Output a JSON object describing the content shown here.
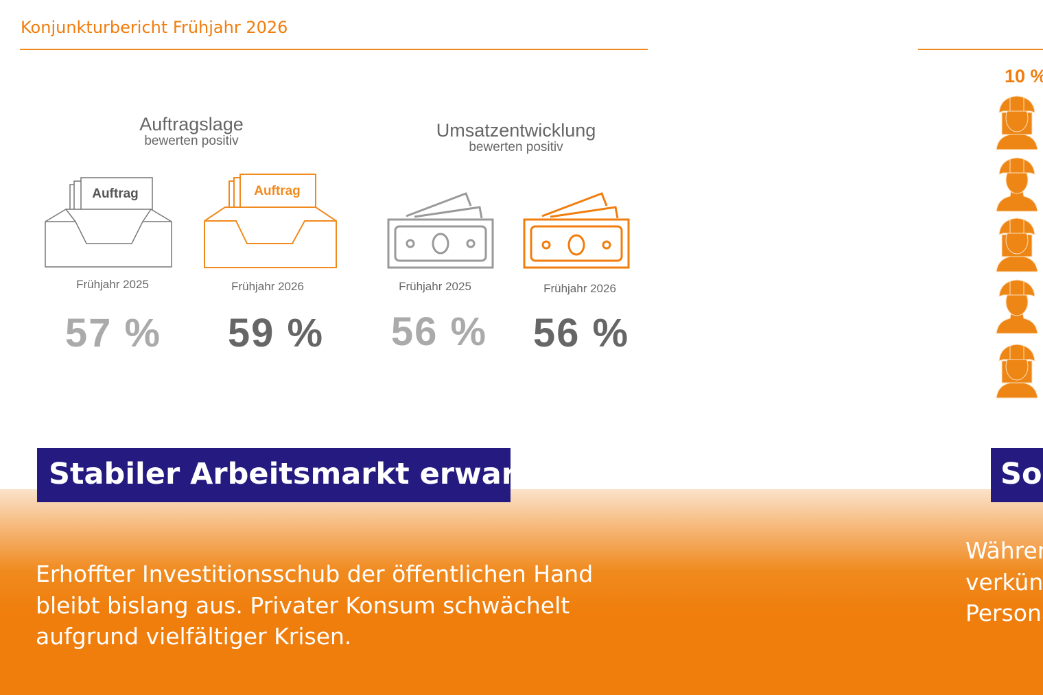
{
  "header": {
    "title": "Konjunkturbericht Frühjahr 2026"
  },
  "colors": {
    "accent": "#f07d0d",
    "gray": "#888888",
    "navy": "#241a80"
  },
  "sections": [
    {
      "title": "Auftragslage",
      "subtitle": "bewerten positiv",
      "icon_label": "Auftrag",
      "items": [
        {
          "label": "Frühjahr 2025",
          "value": "57 %"
        },
        {
          "label": "Frühjahr 2026",
          "value": "59 %"
        }
      ]
    },
    {
      "title": "Umsatzentwicklung",
      "subtitle": "bewerten positiv",
      "items": [
        {
          "label": "Frühjahr 2025",
          "value": "56 %"
        },
        {
          "label": "Frühjahr 2026",
          "value": "56 %"
        }
      ]
    }
  ],
  "right_panel": {
    "value": "10 %",
    "workers_count": 5
  },
  "banner": {
    "title": "Stabiler Arbeitsmarkt erwartet",
    "lines": [
      "Erhoffter Investitionsschub der öffentlichen Hand",
      "bleibt bislang aus. Privater Konsum schwächelt",
      "aufgrund vielfältiger Krisen."
    ]
  },
  "banner_right": {
    "title": "Son",
    "lines": [
      "Währen",
      "verkünd",
      "Persona"
    ]
  }
}
